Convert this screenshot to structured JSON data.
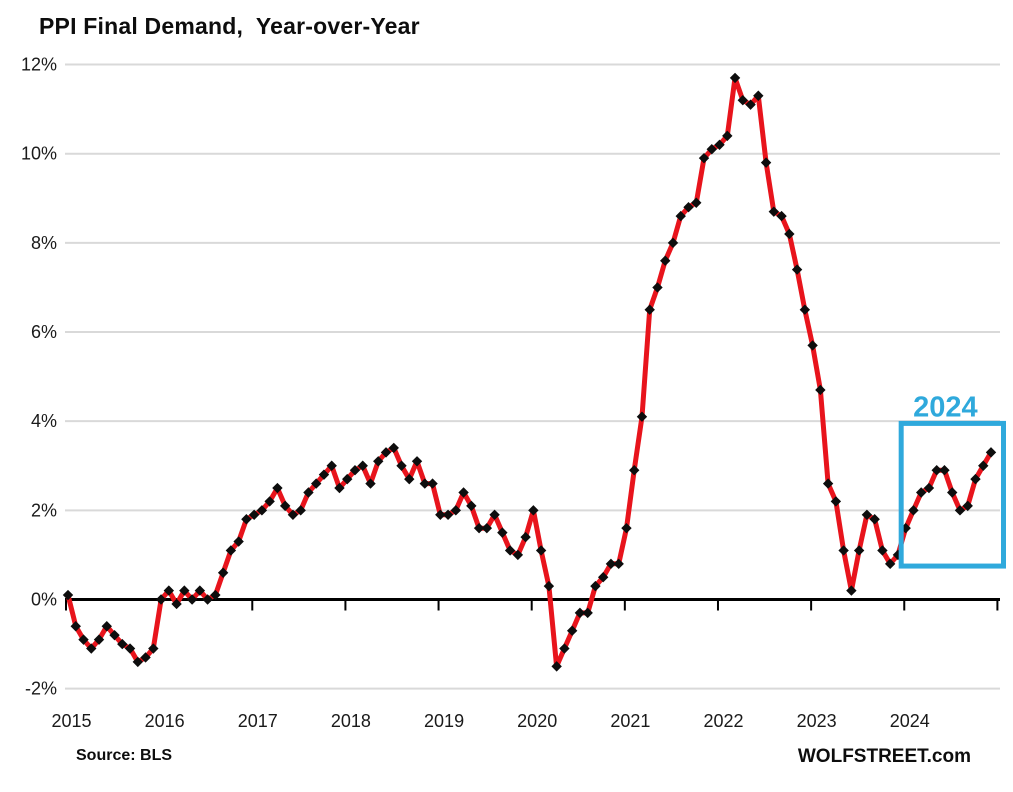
{
  "title": "PPI Final Demand,  Year-over-Year",
  "source_note": "Source: BLS",
  "site_credit": "WOLFSTREET.com",
  "colors": {
    "line": "#e8141c",
    "marker": "#0d0d0d",
    "gridline": "#d9d9d9",
    "axis": "#000000",
    "tick_label": "#1a1a1a",
    "annotation": "#2fa9dc",
    "background": "#ffffff"
  },
  "chart_data": {
    "type": "line",
    "title": "PPI Final Demand,  Year-over-Year",
    "xlabel": "",
    "ylabel": "",
    "unit": "percent, year-over-year",
    "frequency": "monthly",
    "start": "2015-01",
    "end": "2024-12",
    "ylim": [
      -2,
      12
    ],
    "y_grid_step": 2,
    "grid": "horizontal-only",
    "legend": "none",
    "x_tick_labels": [
      "2015",
      "2016",
      "2017",
      "2018",
      "2019",
      "2020",
      "2021",
      "2022",
      "2023",
      "2024"
    ],
    "y_tick_labels": [
      "12%",
      "10%",
      "8%",
      "6%",
      "4%",
      "2%",
      "0%",
      "-2%"
    ],
    "series": [
      {
        "name": "PPI Final Demand YoY (%)",
        "marker": "diamond",
        "values": [
          0.1,
          -0.6,
          -0.9,
          -1.1,
          -0.9,
          -0.6,
          -0.8,
          -1.0,
          -1.1,
          -1.4,
          -1.3,
          -1.1,
          0.0,
          0.2,
          -0.1,
          0.2,
          0.0,
          0.2,
          0.0,
          0.1,
          0.6,
          1.1,
          1.3,
          1.8,
          1.9,
          2.0,
          2.2,
          2.5,
          2.1,
          1.9,
          2.0,
          2.4,
          2.6,
          2.8,
          3.0,
          2.5,
          2.7,
          2.9,
          3.0,
          2.6,
          3.1,
          3.3,
          3.4,
          3.0,
          2.7,
          3.1,
          2.6,
          2.6,
          1.9,
          1.9,
          2.0,
          2.4,
          2.1,
          1.6,
          1.6,
          1.9,
          1.5,
          1.1,
          1.0,
          1.4,
          2.0,
          1.1,
          0.3,
          -1.5,
          -1.1,
          -0.7,
          -0.3,
          -0.3,
          0.3,
          0.5,
          0.8,
          0.8,
          1.6,
          2.9,
          4.1,
          6.5,
          7.0,
          7.6,
          8.0,
          8.6,
          8.8,
          8.9,
          9.9,
          10.1,
          10.2,
          10.4,
          11.7,
          11.2,
          11.1,
          11.3,
          9.8,
          8.7,
          8.6,
          8.2,
          7.4,
          6.5,
          5.7,
          4.7,
          2.6,
          2.2,
          1.1,
          0.2,
          1.1,
          1.9,
          1.8,
          1.1,
          0.8,
          1.0,
          1.6,
          2.0,
          2.4,
          2.5,
          2.9,
          2.9,
          2.4,
          2.0,
          2.1,
          2.7,
          3.0,
          3.3
        ]
      }
    ],
    "annotation_box": {
      "label": "2024",
      "from": "2024-01",
      "to": "2024-12",
      "y_min": 0.75,
      "y_max": 3.95
    }
  }
}
